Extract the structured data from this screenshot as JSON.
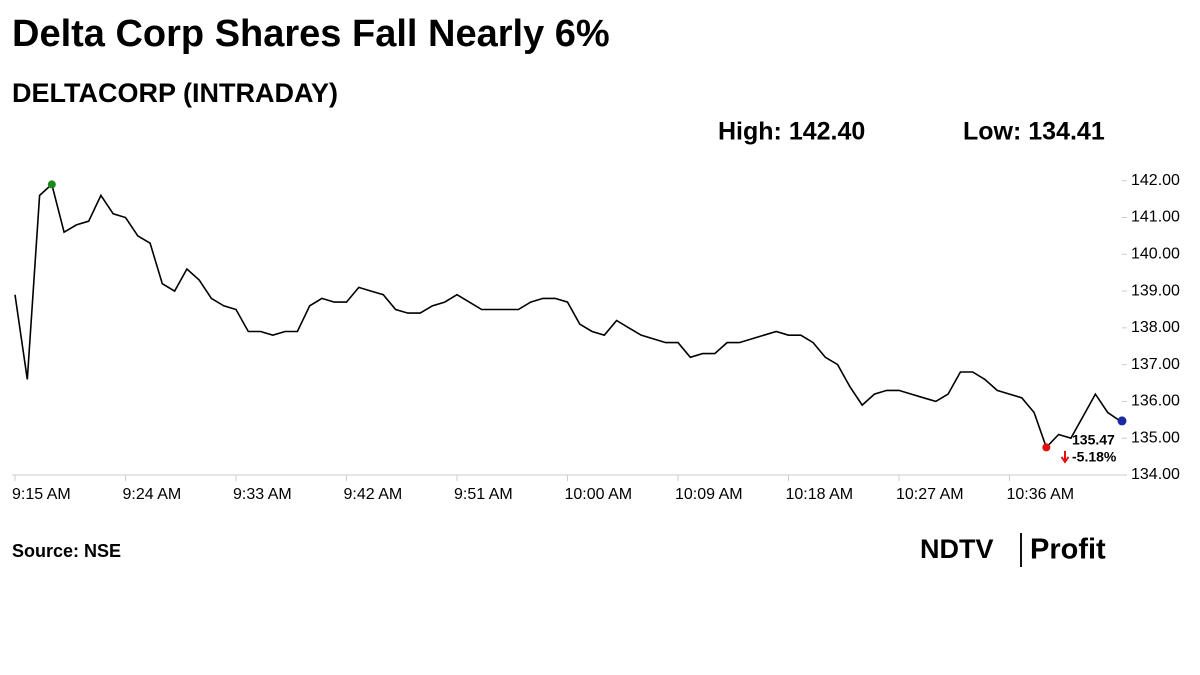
{
  "chart_data": {
    "type": "line",
    "title": "Delta Corp Shares Fall Nearly 6%",
    "subtitle": "DELTACORP (INTRADAY)",
    "high_label": "High: 142.40",
    "low_label": "Low: 134.41",
    "source": "Source: NSE",
    "brand": {
      "left": "NDTV",
      "right": "Profit"
    },
    "categories": [
      "9:15 AM",
      null,
      null,
      null,
      null,
      null,
      null,
      null,
      null,
      "9:24 AM",
      null,
      null,
      null,
      null,
      null,
      null,
      null,
      null,
      "9:33 AM",
      null,
      null,
      null,
      null,
      null,
      null,
      null,
      null,
      "9:42 AM",
      null,
      null,
      null,
      null,
      null,
      null,
      null,
      null,
      "9:51 AM",
      null,
      null,
      null,
      null,
      null,
      null,
      null,
      null,
      "10:00 AM",
      null,
      null,
      null,
      null,
      null,
      null,
      null,
      null,
      "10:09 AM",
      null,
      null,
      null,
      null,
      null,
      null,
      null,
      null,
      "10:18 AM",
      null,
      null,
      null,
      null,
      null,
      null,
      null,
      null,
      "10:27 AM",
      null,
      null,
      null,
      null,
      null,
      null,
      null,
      null,
      "10:36 AM",
      null,
      null,
      null,
      null,
      null,
      null,
      null,
      null,
      null
    ],
    "values": [
      138.9,
      136.6,
      141.6,
      141.9,
      140.6,
      140.8,
      140.9,
      141.6,
      141.1,
      141.0,
      140.5,
      140.3,
      139.2,
      139.0,
      139.6,
      139.3,
      138.8,
      138.6,
      138.5,
      137.9,
      137.9,
      137.8,
      137.9,
      137.9,
      138.6,
      138.8,
      138.7,
      138.7,
      139.1,
      139.0,
      138.9,
      138.5,
      138.4,
      138.4,
      138.6,
      138.7,
      138.9,
      138.7,
      138.5,
      138.5,
      138.5,
      138.5,
      138.7,
      138.8,
      138.8,
      138.7,
      138.1,
      137.9,
      137.8,
      138.2,
      138.0,
      137.8,
      137.7,
      137.6,
      137.6,
      137.2,
      137.3,
      137.3,
      137.6,
      137.6,
      137.7,
      137.8,
      137.9,
      137.8,
      137.8,
      137.6,
      137.2,
      137.0,
      136.4,
      135.9,
      136.2,
      136.3,
      136.3,
      136.2,
      136.1,
      136.0,
      136.2,
      136.8,
      136.8,
      136.6,
      136.3,
      136.2,
      136.1,
      135.7,
      134.75,
      135.1,
      135.0,
      135.6,
      136.2,
      135.7,
      135.47
    ],
    "change_label": "-5.18%",
    "color": "#000000",
    "high_color": "#1a8a1a",
    "low_color": "#e01010",
    "last_color": "#1a2aa0",
    "ylim": [
      134,
      142.4
    ],
    "yticks": [
      {
        "value": 134,
        "label": "134.00"
      },
      {
        "value": 135,
        "label": "135.00"
      },
      {
        "value": 136,
        "label": "136.00"
      },
      {
        "value": 137,
        "label": "137.00"
      },
      {
        "value": 138,
        "label": "138.00"
      },
      {
        "value": 139,
        "label": "139.00"
      },
      {
        "value": 140,
        "label": "140.00"
      },
      {
        "value": 141,
        "label": "141.00"
      },
      {
        "value": 142,
        "label": "142.00"
      }
    ],
    "grid": false
  }
}
